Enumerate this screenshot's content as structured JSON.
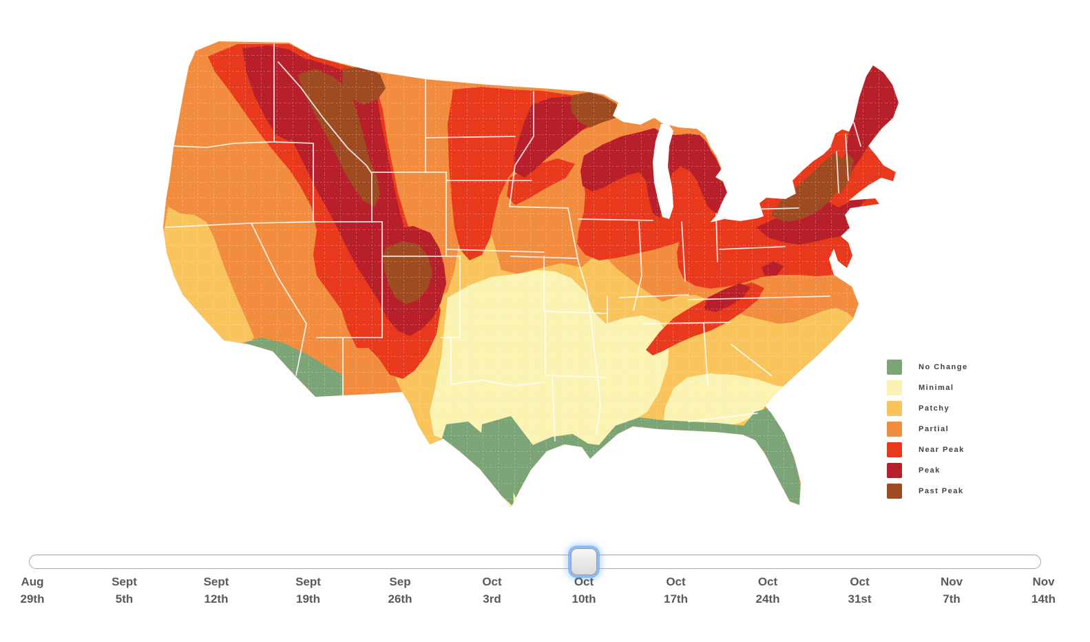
{
  "map": {
    "legend": {
      "items": [
        {
          "key": "no-change",
          "label": "No Change",
          "color": "#7CA577"
        },
        {
          "key": "minimal",
          "label": "Minimal",
          "color": "#FAF3B1"
        },
        {
          "key": "patchy",
          "label": "Patchy",
          "color": "#F9C45B"
        },
        {
          "key": "partial",
          "label": "Partial",
          "color": "#F28C3E"
        },
        {
          "key": "near-peak",
          "label": "Near Peak",
          "color": "#E8391D"
        },
        {
          "key": "peak",
          "label": "Peak",
          "color": "#B71F2A"
        },
        {
          "key": "past-peak",
          "label": "Past Peak",
          "color": "#9E4B21"
        }
      ]
    }
  },
  "timeline": {
    "selected_index": 6,
    "dates": [
      {
        "month": "Aug",
        "day": "29th"
      },
      {
        "month": "Sept",
        "day": "5th"
      },
      {
        "month": "Sept",
        "day": "12th"
      },
      {
        "month": "Sept",
        "day": "19th"
      },
      {
        "month": "Sep",
        "day": "26th"
      },
      {
        "month": "Oct",
        "day": "3rd"
      },
      {
        "month": "Oct",
        "day": "10th"
      },
      {
        "month": "Oct",
        "day": "17th"
      },
      {
        "month": "Oct",
        "day": "24th"
      },
      {
        "month": "Oct",
        "day": "31st"
      },
      {
        "month": "Nov",
        "day": "7th"
      },
      {
        "month": "Nov",
        "day": "14th"
      }
    ]
  }
}
